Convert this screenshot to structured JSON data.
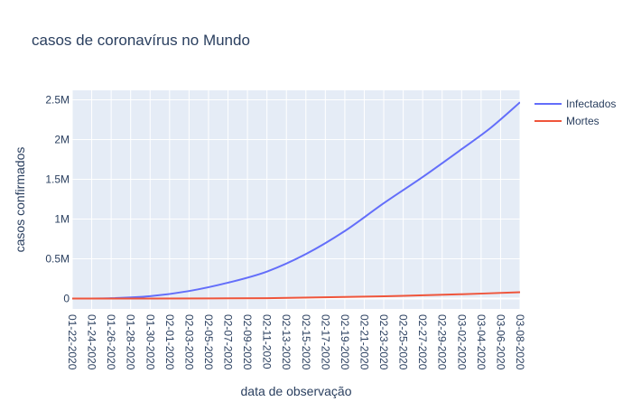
{
  "chart_data": {
    "type": "line",
    "title": "casos de coronavírus no Mundo",
    "xlabel": "data de observação",
    "ylabel": "casos confirmados",
    "x_tick_labels": [
      "01-22-2020",
      "01-24-2020",
      "01-26-2020",
      "01-28-2020",
      "01-30-2020",
      "02-01-2020",
      "02-03-2020",
      "02-05-2020",
      "02-07-2020",
      "02-09-2020",
      "02-11-2020",
      "02-13-2020",
      "02-15-2020",
      "02-17-2020",
      "02-19-2020",
      "02-21-2020",
      "02-23-2020",
      "02-25-2020",
      "02-27-2020",
      "02-29-2020",
      "03-02-2020",
      "03-04-2020",
      "03-06-2020",
      "03-08-2020"
    ],
    "y_tick_labels": [
      "0",
      "0.5M",
      "1M",
      "1.5M",
      "2M",
      "2.5M"
    ],
    "y_tick_values": [
      0,
      500000,
      1000000,
      1500000,
      2000000,
      2500000
    ],
    "xlim": [
      "01-22-2020",
      "03-08-2020"
    ],
    "ylim": [
      -130000,
      2620000
    ],
    "grid": true,
    "legend_position": "top-right",
    "series": [
      {
        "name": "Infectados",
        "color": "#636efa",
        "x": [
          "01-22-2020",
          "01-26-2020",
          "01-30-2020",
          "02-03-2020",
          "02-07-2020",
          "02-11-2020",
          "02-15-2020",
          "02-19-2020",
          "02-23-2020",
          "02-27-2020",
          "03-02-2020",
          "03-05-2020",
          "03-08-2020"
        ],
        "values": [
          0,
          5000,
          30000,
          95000,
          200000,
          340000,
          560000,
          850000,
          1200000,
          1530000,
          1880000,
          2150000,
          2470000
        ]
      },
      {
        "name": "Mortes",
        "color": "#ef553b",
        "x": [
          "01-22-2020",
          "01-30-2020",
          "02-11-2020",
          "02-19-2020",
          "02-25-2020",
          "03-02-2020",
          "03-08-2020"
        ],
        "values": [
          0,
          1000,
          5000,
          20000,
          35000,
          55000,
          80000
        ]
      }
    ]
  }
}
